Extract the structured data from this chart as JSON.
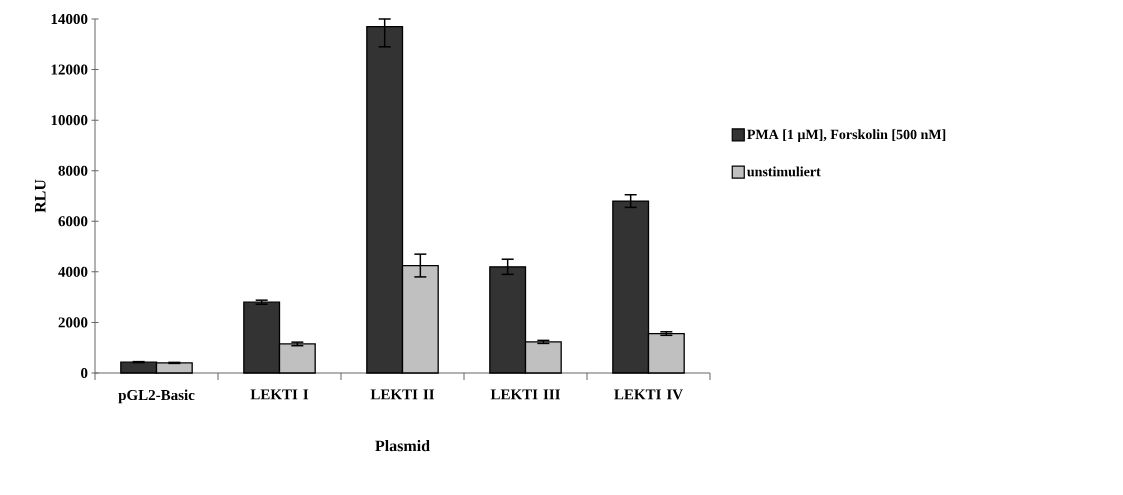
{
  "chart_data": {
    "type": "bar",
    "xlabel": "Plasmid",
    "ylabel": "RLU",
    "categories": [
      "pGL2-Basic",
      "LEKTI I",
      "LEKTI II",
      "LEKTI III",
      "LEKTI IV"
    ],
    "series": [
      {
        "name": "PMA [1 µM], Forskolin [500 nM]",
        "color": "#333333",
        "values": [
          430,
          2800,
          13700,
          4200,
          6800
        ],
        "errors": [
          20,
          80,
          [
            12900,
            14000
          ],
          [
            3900,
            4500
          ],
          [
            6550,
            7050
          ]
        ]
      },
      {
        "name": "unstimuliert",
        "color": "#c0c0c0",
        "values": [
          400,
          1150,
          4250,
          1230,
          1560
        ],
        "errors": [
          20,
          70,
          [
            3800,
            4700
          ],
          60,
          70
        ]
      }
    ],
    "ylim": [
      0,
      14000
    ],
    "yticks": [
      0,
      2000,
      4000,
      6000,
      8000,
      10000,
      12000,
      14000
    ],
    "grid": false,
    "legend": "right"
  }
}
